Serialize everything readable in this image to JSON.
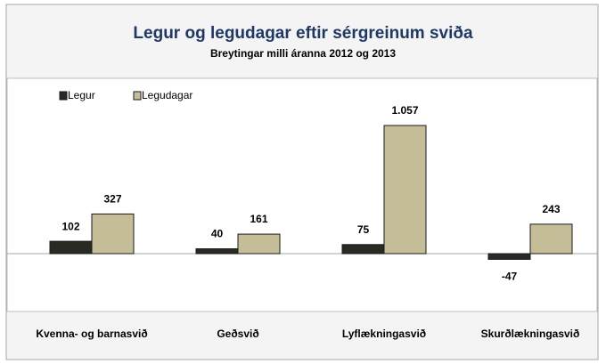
{
  "chart_data": {
    "type": "bar",
    "title": "Legur og legudagar  eftir sérgreinum sviða",
    "subtitle": "Breytingar milli áranna 2012 og 2013",
    "categories": [
      "Kvenna- og barnasvið",
      "Geðsvið",
      "Lyflækningasvið",
      "Skurðlækningasvið"
    ],
    "series": [
      {
        "name": "Legur",
        "color": "#2a2a24",
        "values": [
          102,
          40,
          75,
          -47
        ]
      },
      {
        "name": "Legudagar",
        "color": "#c4bd97",
        "values": [
          327,
          161,
          1057,
          243
        ],
        "value_labels": [
          "327",
          "161",
          "1.057",
          "243"
        ]
      }
    ],
    "legend": "top-left"
  }
}
